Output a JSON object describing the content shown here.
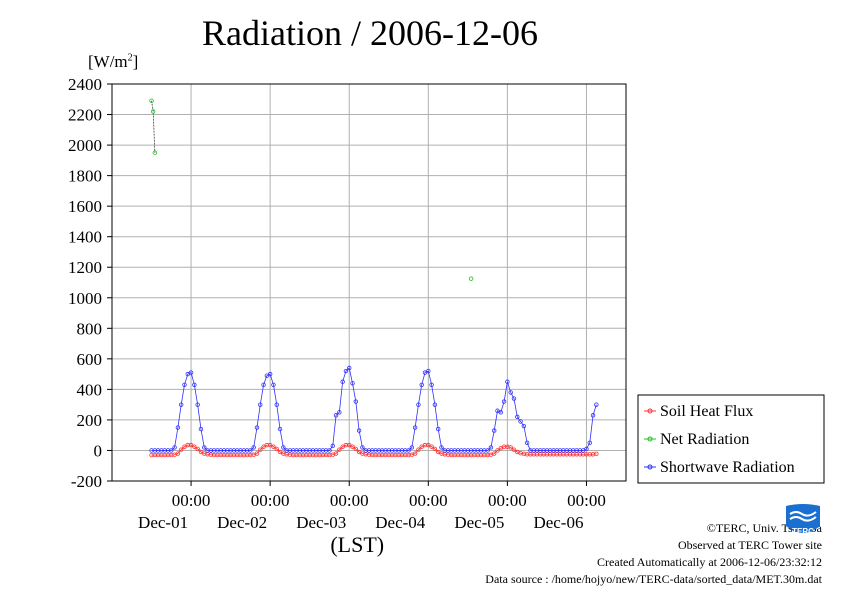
{
  "page": {
    "title": "Radiation / 2006-12-06",
    "unit_label_prefix": "[W/m",
    "unit_label_sup": "2",
    "unit_label_suffix": "]",
    "xaxis_title": "(LST)",
    "credit": "©TERC, Univ. Tsukuba",
    "observed": "Observed at TERC Tower site",
    "created": "Created Automatically at 2006-12-06/23:32:12",
    "source": "Data source : /home/hojyo/new/TERC-data/sorted_data/MET.30m.dat",
    "logo_text": "TERC"
  },
  "chart_data": {
    "type": "line",
    "title": "Radiation / 2006-12-06",
    "xlabel": "(LST)",
    "ylabel": "[W/m2]",
    "ylim": [
      -200,
      2400
    ],
    "yticks": [
      -200,
      0,
      200,
      400,
      600,
      800,
      1000,
      1200,
      1400,
      1600,
      1800,
      2000,
      2200,
      2400
    ],
    "xlim_hours": [
      -12,
      144
    ],
    "xticks": [
      {
        "time": "00:00",
        "date": "Dec-01",
        "hour": 12
      },
      {
        "time": "00:00",
        "date": "Dec-02",
        "hour": 36
      },
      {
        "time": "00:00",
        "date": "Dec-03",
        "hour": 60
      },
      {
        "time": "00:00",
        "date": "Dec-04",
        "hour": 84
      },
      {
        "time": "00:00",
        "date": "Dec-05",
        "hour": 108
      },
      {
        "time": "00:00",
        "date": "Dec-06",
        "hour": 132
      }
    ],
    "grid": true,
    "legend_position": "right",
    "series": [
      {
        "name": "Soil Heat Flux",
        "color": "#ff3030",
        "marker": "circle",
        "points": [
          [
            0,
            -30
          ],
          [
            1,
            -30
          ],
          [
            2,
            -30
          ],
          [
            3,
            -30
          ],
          [
            4,
            -30
          ],
          [
            5,
            -30
          ],
          [
            6,
            -30
          ],
          [
            7,
            -28
          ],
          [
            8,
            -20
          ],
          [
            9,
            5
          ],
          [
            10,
            25
          ],
          [
            11,
            35
          ],
          [
            12,
            35
          ],
          [
            13,
            25
          ],
          [
            14,
            10
          ],
          [
            15,
            -10
          ],
          [
            16,
            -20
          ],
          [
            17,
            -25
          ],
          [
            18,
            -28
          ],
          [
            19,
            -30
          ],
          [
            20,
            -30
          ],
          [
            21,
            -30
          ],
          [
            22,
            -30
          ],
          [
            23,
            -30
          ],
          [
            24,
            -30
          ],
          [
            25,
            -30
          ],
          [
            26,
            -30
          ],
          [
            27,
            -30
          ],
          [
            28,
            -30
          ],
          [
            29,
            -30
          ],
          [
            30,
            -30
          ],
          [
            31,
            -28
          ],
          [
            32,
            -20
          ],
          [
            33,
            5
          ],
          [
            34,
            25
          ],
          [
            35,
            35
          ],
          [
            36,
            35
          ],
          [
            37,
            25
          ],
          [
            38,
            10
          ],
          [
            39,
            -10
          ],
          [
            40,
            -20
          ],
          [
            41,
            -25
          ],
          [
            42,
            -28
          ],
          [
            43,
            -30
          ],
          [
            44,
            -30
          ],
          [
            45,
            -30
          ],
          [
            46,
            -30
          ],
          [
            47,
            -30
          ],
          [
            48,
            -30
          ],
          [
            49,
            -30
          ],
          [
            50,
            -30
          ],
          [
            51,
            -30
          ],
          [
            52,
            -30
          ],
          [
            53,
            -30
          ],
          [
            54,
            -30
          ],
          [
            55,
            -28
          ],
          [
            56,
            -20
          ],
          [
            57,
            5
          ],
          [
            58,
            25
          ],
          [
            59,
            35
          ],
          [
            60,
            35
          ],
          [
            61,
            25
          ],
          [
            62,
            10
          ],
          [
            63,
            -10
          ],
          [
            64,
            -20
          ],
          [
            65,
            -25
          ],
          [
            66,
            -28
          ],
          [
            67,
            -30
          ],
          [
            68,
            -30
          ],
          [
            69,
            -30
          ],
          [
            70,
            -30
          ],
          [
            71,
            -30
          ],
          [
            72,
            -30
          ],
          [
            73,
            -30
          ],
          [
            74,
            -30
          ],
          [
            75,
            -30
          ],
          [
            76,
            -30
          ],
          [
            77,
            -30
          ],
          [
            78,
            -30
          ],
          [
            79,
            -28
          ],
          [
            80,
            -20
          ],
          [
            81,
            5
          ],
          [
            82,
            25
          ],
          [
            83,
            35
          ],
          [
            84,
            35
          ],
          [
            85,
            25
          ],
          [
            86,
            10
          ],
          [
            87,
            -10
          ],
          [
            88,
            -20
          ],
          [
            89,
            -25
          ],
          [
            90,
            -28
          ],
          [
            91,
            -30
          ],
          [
            92,
            -30
          ],
          [
            93,
            -30
          ],
          [
            94,
            -30
          ],
          [
            95,
            -30
          ],
          [
            96,
            -30
          ],
          [
            97,
            -30
          ],
          [
            98,
            -30
          ],
          [
            99,
            -30
          ],
          [
            100,
            -30
          ],
          [
            101,
            -30
          ],
          [
            102,
            -30
          ],
          [
            103,
            -28
          ],
          [
            104,
            -20
          ],
          [
            105,
            0
          ],
          [
            106,
            15
          ],
          [
            107,
            25
          ],
          [
            108,
            25
          ],
          [
            109,
            20
          ],
          [
            110,
            5
          ],
          [
            111,
            -10
          ],
          [
            112,
            -18
          ],
          [
            113,
            -22
          ],
          [
            114,
            -25
          ],
          [
            115,
            -25
          ],
          [
            116,
            -25
          ],
          [
            117,
            -25
          ],
          [
            118,
            -25
          ],
          [
            119,
            -25
          ],
          [
            120,
            -25
          ],
          [
            121,
            -25
          ],
          [
            122,
            -25
          ],
          [
            123,
            -25
          ],
          [
            124,
            -25
          ],
          [
            125,
            -25
          ],
          [
            126,
            -25
          ],
          [
            127,
            -25
          ],
          [
            128,
            -25
          ],
          [
            129,
            -25
          ],
          [
            130,
            -25
          ],
          [
            131,
            -25
          ],
          [
            132,
            -25
          ],
          [
            133,
            -25
          ],
          [
            134,
            -25
          ],
          [
            135,
            -22
          ]
        ]
      },
      {
        "name": "Net Radiation",
        "color": "#20c020",
        "marker": "circle",
        "points": [
          [
            0,
            2290
          ],
          [
            0.5,
            2220
          ],
          [
            1,
            1950
          ],
          [
            97,
            1125
          ]
        ]
      },
      {
        "name": "Shortwave Radiation",
        "color": "#3030ff",
        "marker": "circle",
        "points": [
          [
            0,
            0
          ],
          [
            1,
            0
          ],
          [
            2,
            0
          ],
          [
            3,
            0
          ],
          [
            4,
            0
          ],
          [
            5,
            0
          ],
          [
            6,
            0
          ],
          [
            7,
            20
          ],
          [
            8,
            150
          ],
          [
            9,
            300
          ],
          [
            10,
            430
          ],
          [
            11,
            500
          ],
          [
            12,
            510
          ],
          [
            13,
            430
          ],
          [
            14,
            300
          ],
          [
            15,
            140
          ],
          [
            16,
            20
          ],
          [
            17,
            0
          ],
          [
            18,
            0
          ],
          [
            19,
            0
          ],
          [
            20,
            0
          ],
          [
            21,
            0
          ],
          [
            22,
            0
          ],
          [
            23,
            0
          ],
          [
            24,
            0
          ],
          [
            25,
            0
          ],
          [
            26,
            0
          ],
          [
            27,
            0
          ],
          [
            28,
            0
          ],
          [
            29,
            0
          ],
          [
            30,
            0
          ],
          [
            31,
            20
          ],
          [
            32,
            150
          ],
          [
            33,
            300
          ],
          [
            34,
            430
          ],
          [
            35,
            490
          ],
          [
            36,
            500
          ],
          [
            37,
            430
          ],
          [
            38,
            300
          ],
          [
            39,
            140
          ],
          [
            40,
            20
          ],
          [
            41,
            0
          ],
          [
            42,
            0
          ],
          [
            43,
            0
          ],
          [
            44,
            0
          ],
          [
            45,
            0
          ],
          [
            46,
            0
          ],
          [
            47,
            0
          ],
          [
            48,
            0
          ],
          [
            49,
            0
          ],
          [
            50,
            0
          ],
          [
            51,
            0
          ],
          [
            52,
            0
          ],
          [
            53,
            0
          ],
          [
            54,
            0
          ],
          [
            55,
            30
          ],
          [
            56,
            230
          ],
          [
            57,
            250
          ],
          [
            58,
            450
          ],
          [
            59,
            520
          ],
          [
            60,
            540
          ],
          [
            61,
            440
          ],
          [
            62,
            320
          ],
          [
            63,
            130
          ],
          [
            64,
            20
          ],
          [
            65,
            0
          ],
          [
            66,
            0
          ],
          [
            67,
            0
          ],
          [
            68,
            0
          ],
          [
            69,
            0
          ],
          [
            70,
            0
          ],
          [
            71,
            0
          ],
          [
            72,
            0
          ],
          [
            73,
            0
          ],
          [
            74,
            0
          ],
          [
            75,
            0
          ],
          [
            76,
            0
          ],
          [
            77,
            0
          ],
          [
            78,
            0
          ],
          [
            79,
            20
          ],
          [
            80,
            150
          ],
          [
            81,
            300
          ],
          [
            82,
            430
          ],
          [
            83,
            510
          ],
          [
            84,
            520
          ],
          [
            85,
            430
          ],
          [
            86,
            300
          ],
          [
            87,
            140
          ],
          [
            88,
            20
          ],
          [
            89,
            0
          ],
          [
            90,
            0
          ],
          [
            91,
            0
          ],
          [
            92,
            0
          ],
          [
            93,
            0
          ],
          [
            94,
            0
          ],
          [
            95,
            0
          ],
          [
            96,
            0
          ],
          [
            97,
            0
          ],
          [
            98,
            0
          ],
          [
            99,
            0
          ],
          [
            100,
            0
          ],
          [
            101,
            0
          ],
          [
            102,
            0
          ],
          [
            103,
            20
          ],
          [
            104,
            130
          ],
          [
            105,
            260
          ],
          [
            106,
            250
          ],
          [
            107,
            320
          ],
          [
            108,
            450
          ],
          [
            109,
            380
          ],
          [
            110,
            340
          ],
          [
            111,
            220
          ],
          [
            112,
            190
          ],
          [
            113,
            160
          ],
          [
            114,
            50
          ],
          [
            115,
            0
          ],
          [
            116,
            0
          ],
          [
            117,
            0
          ],
          [
            118,
            0
          ],
          [
            119,
            0
          ],
          [
            120,
            0
          ],
          [
            121,
            0
          ],
          [
            122,
            0
          ],
          [
            123,
            0
          ],
          [
            124,
            0
          ],
          [
            125,
            0
          ],
          [
            126,
            0
          ],
          [
            127,
            0
          ],
          [
            128,
            0
          ],
          [
            129,
            0
          ],
          [
            130,
            0
          ],
          [
            131,
            0
          ],
          [
            132,
            10
          ],
          [
            133,
            50
          ],
          [
            134,
            230
          ],
          [
            135,
            300
          ]
        ]
      }
    ]
  }
}
